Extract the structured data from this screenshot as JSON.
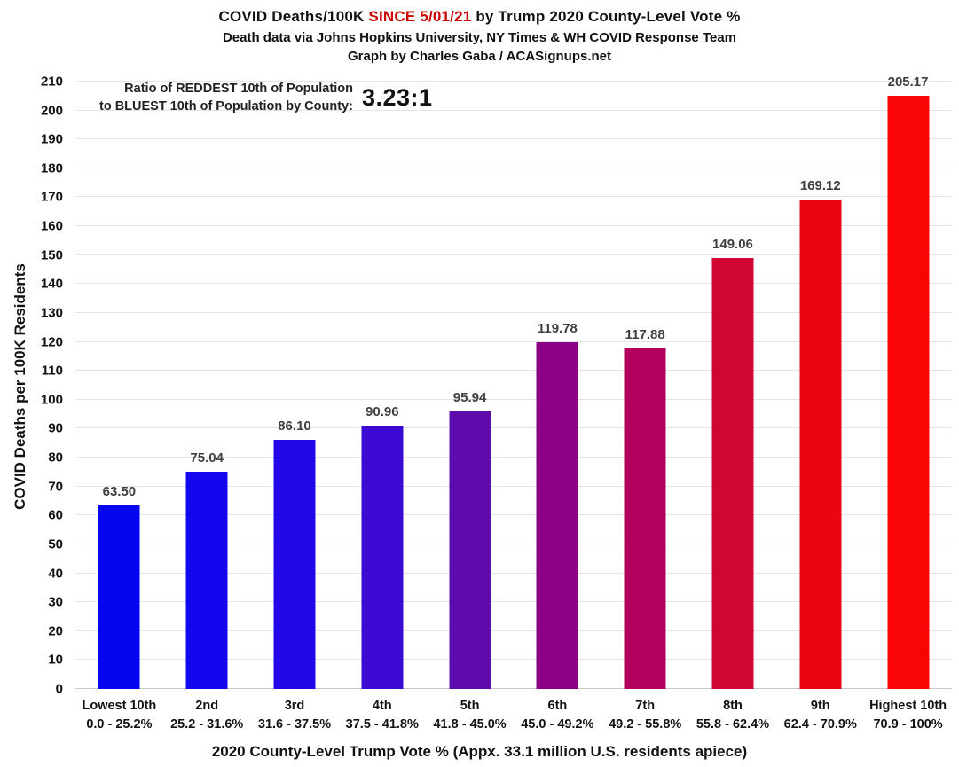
{
  "header": {
    "title_part1": "COVID Deaths/100K ",
    "title_highlight": "SINCE 5/01/21",
    "title_part2": " by Trump 2020 County-Level Vote %",
    "highlight_color": "#cc0000",
    "subtitle": "Death data via Johns Hopkins University, NY Times & WH COVID Response Team",
    "credit": "Graph by Charles Gaba / ACASignups.net"
  },
  "annotation": {
    "line1": "Ratio of REDDEST 10th of Population",
    "line2": "to BLUEST 10th of Population by County:",
    "ratio": "3.23:1"
  },
  "chart_data": {
    "type": "bar",
    "title": "COVID Deaths/100K SINCE 5/01/21 by Trump 2020 County-Level Vote %",
    "xlabel": "2020 County-Level Trump Vote % (Appx. 33.1 million U.S. residents apiece)",
    "ylabel": "COVID Deaths per 100K Residents",
    "ylim": [
      0,
      210
    ],
    "ytick_step": 10,
    "grid": true,
    "legend": "none",
    "categories": [
      "Lowest 10th",
      "2nd",
      "3rd",
      "4th",
      "5th",
      "6th",
      "7th",
      "8th",
      "9th",
      "Highest 10th"
    ],
    "category_ranges": [
      "0.0 - 25.2%",
      "25.2 - 31.6%",
      "31.6 - 37.5%",
      "37.5 - 41.8%",
      "41.8 - 45.0%",
      "45.0 - 49.2%",
      "49.2 - 55.8%",
      "55.8 - 62.4%",
      "62.4 - 70.9%",
      "70.9 - 100%"
    ],
    "values": [
      63.5,
      75.04,
      86.1,
      90.96,
      95.94,
      119.78,
      117.88,
      149.06,
      169.12,
      205.17
    ],
    "value_labels": [
      "63.50",
      "75.04",
      "86.10",
      "90.96",
      "95.94",
      "119.78",
      "117.88",
      "149.06",
      "169.12",
      "205.17"
    ],
    "bar_colors": [
      "#0505f0",
      "#1307ee",
      "#2407e6",
      "#3c0ad3",
      "#5e0bab",
      "#8d0186",
      "#b3015e",
      "#d00534",
      "#e90612",
      "#fa0505"
    ]
  }
}
